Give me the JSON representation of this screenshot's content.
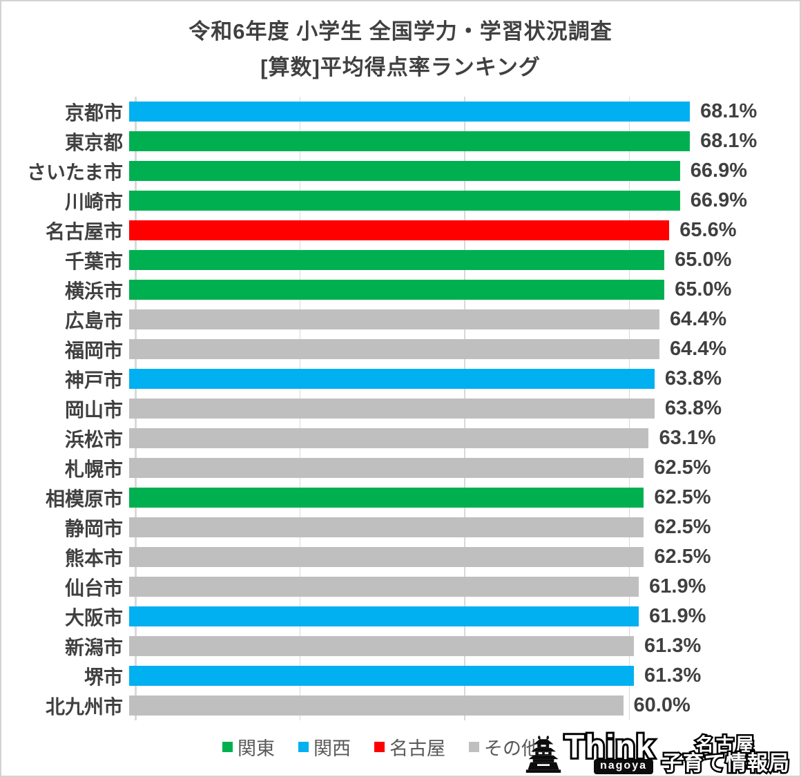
{
  "title": {
    "line1": "令和6年度 小学生 全国学力・学習状況調査",
    "line2": "[算数]平均得点率ランキング"
  },
  "chart_data": {
    "type": "bar",
    "orientation": "horizontal",
    "title": "令和6年度 小学生 全国学力・学習状況調査 [算数]平均得点率ランキング",
    "xlabel": "",
    "ylabel": "",
    "xlim": [
      0,
      80
    ],
    "unit": "%",
    "grid": "vertical",
    "gridline_values": [
      0,
      20,
      40,
      60
    ],
    "legend_position": "bottom",
    "group_colors": {
      "関東": "#00b050",
      "関西": "#00b0f0",
      "名古屋": "#ff0000",
      "その他": "#bfbfbf"
    },
    "legend": [
      {
        "label": "関東",
        "group": "関東"
      },
      {
        "label": "関西",
        "group": "関西"
      },
      {
        "label": "名古屋",
        "group": "名古屋"
      },
      {
        "label": "その他",
        "group": "その他"
      }
    ],
    "rows": [
      {
        "label": "京都市",
        "value": 68.1,
        "display": "68.1%",
        "group": "関西"
      },
      {
        "label": "東京都",
        "value": 68.1,
        "display": "68.1%",
        "group": "関東"
      },
      {
        "label": "さいたま市",
        "value": 66.9,
        "display": "66.9%",
        "group": "関東"
      },
      {
        "label": "川崎市",
        "value": 66.9,
        "display": "66.9%",
        "group": "関東"
      },
      {
        "label": "名古屋市",
        "value": 65.6,
        "display": "65.6%",
        "group": "名古屋"
      },
      {
        "label": "千葉市",
        "value": 65.0,
        "display": "65.0%",
        "group": "関東"
      },
      {
        "label": "横浜市",
        "value": 65.0,
        "display": "65.0%",
        "group": "関東"
      },
      {
        "label": "広島市",
        "value": 64.4,
        "display": "64.4%",
        "group": "その他"
      },
      {
        "label": "福岡市",
        "value": 64.4,
        "display": "64.4%",
        "group": "その他"
      },
      {
        "label": "神戸市",
        "value": 63.8,
        "display": "63.8%",
        "group": "関西"
      },
      {
        "label": "岡山市",
        "value": 63.8,
        "display": "63.8%",
        "group": "その他"
      },
      {
        "label": "浜松市",
        "value": 63.1,
        "display": "63.1%",
        "group": "その他"
      },
      {
        "label": "札幌市",
        "value": 62.5,
        "display": "62.5%",
        "group": "その他"
      },
      {
        "label": "相模原市",
        "value": 62.5,
        "display": "62.5%",
        "group": "関東"
      },
      {
        "label": "静岡市",
        "value": 62.5,
        "display": "62.5%",
        "group": "その他"
      },
      {
        "label": "熊本市",
        "value": 62.5,
        "display": "62.5%",
        "group": "その他"
      },
      {
        "label": "仙台市",
        "value": 61.9,
        "display": "61.9%",
        "group": "その他"
      },
      {
        "label": "大阪市",
        "value": 61.9,
        "display": "61.9%",
        "group": "関西"
      },
      {
        "label": "新潟市",
        "value": 61.3,
        "display": "61.3%",
        "group": "その他"
      },
      {
        "label": "堺市",
        "value": 61.3,
        "display": "61.3%",
        "group": "関西"
      },
      {
        "label": "北九州市",
        "value": 60.0,
        "display": "60.0%",
        "group": "その他"
      }
    ]
  },
  "logo": {
    "brand": "Think",
    "sub": "nagoya",
    "tag_top": "名古屋",
    "tag_bottom": "子育て情報局"
  },
  "colors": {
    "text": "#404040",
    "legend_text": "#595959",
    "gridline": "#d9d9d9",
    "border": "#d2d2d2"
  }
}
